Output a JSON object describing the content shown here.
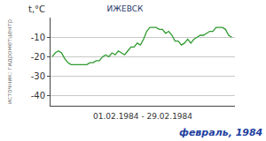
{
  "chart_data": {
    "type": "line",
    "title": "ИЖЕВСК",
    "y_label": "t,°C",
    "x_label": "01.02.1984 - 29.02.1984",
    "subtitle": "февраль, 1984",
    "source": "источник: гидрометцентр",
    "categories": [
      null,
      null,
      null,
      null,
      null,
      null,
      null,
      null,
      null,
      null,
      null,
      null,
      null,
      null,
      null,
      null,
      null,
      null,
      null,
      null,
      null,
      null,
      null,
      null,
      null,
      null,
      null,
      null,
      null,
      null,
      null,
      null,
      null,
      null,
      null,
      null,
      null,
      null,
      null,
      null,
      null,
      null,
      null,
      null,
      null,
      null,
      null,
      null,
      null,
      null,
      null,
      null,
      null,
      null,
      null,
      null,
      null,
      null
    ],
    "values": [
      -20,
      -18,
      -17,
      -18,
      -21,
      -23,
      -24,
      -24,
      -24,
      -24,
      -24,
      -24,
      -23,
      -23,
      -22,
      -22,
      -20,
      -19,
      -20,
      -18,
      -19,
      -17,
      -18,
      -19,
      -17,
      -15,
      -15,
      -13,
      -14,
      -11,
      -7,
      -5,
      -5,
      -5,
      -6,
      -6,
      -8,
      -7,
      -9,
      -12,
      -12,
      -14,
      -13,
      -11,
      -13,
      -11,
      -10,
      -9,
      -9,
      -8,
      -7,
      -7,
      -5,
      -5,
      -5,
      -6,
      -9,
      -10
    ],
    "color": "#2e9a2e",
    "ylim": [
      -45,
      0
    ],
    "yticks": [
      -10,
      -20,
      -30,
      -40
    ],
    "grid": true,
    "tick_labels": "y"
  }
}
